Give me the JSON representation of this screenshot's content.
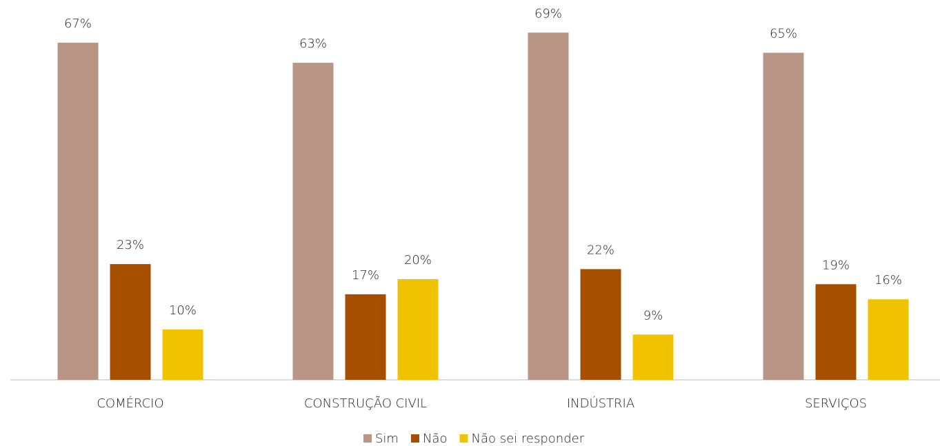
{
  "chart_data": {
    "type": "bar",
    "categories": [
      "COMÉRCIO",
      "CONSTRUÇÃO CIVIL",
      "INDÚSTRIA",
      "SERVIÇOS"
    ],
    "series": [
      {
        "name": "Sim",
        "color": "#b89585",
        "values": [
          67,
          63,
          69,
          65
        ],
        "value_labels": [
          "67%",
          "63%",
          "69%",
          "65%"
        ]
      },
      {
        "name": "Não",
        "color": "#a64f00",
        "values": [
          23,
          17,
          22,
          19
        ],
        "value_labels": [
          "23%",
          "17%",
          "22%",
          "19%"
        ]
      },
      {
        "name": "Não sei responder",
        "color": "#f1c200",
        "values": [
          10,
          20,
          9,
          16
        ],
        "value_labels": [
          "10%",
          "20%",
          "9%",
          "16%"
        ]
      }
    ],
    "legend": "bottom"
  }
}
